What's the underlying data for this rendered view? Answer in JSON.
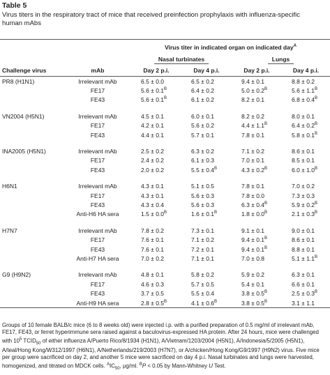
{
  "title": "Table 5",
  "caption": "Virus titers in the respiratory tract of mice that received preinfection prophylaxis with influenza-specific human mAbs",
  "header": {
    "group": {
      "text": "Virus titer in indicated organ on indicated day",
      "sup": "A"
    },
    "organs": [
      "Nasal turbinates",
      "Lungs"
    ],
    "columns": [
      "Challenge virus",
      "mAb",
      "Day 2 p.i.",
      "Day 4 p.i.",
      "Day 2 p.i.",
      "Day 4 p.i."
    ]
  },
  "groups": [
    {
      "virus": "PR8 (H1N1)",
      "rows": [
        {
          "mab": "Irrelevant mAb",
          "cells": [
            "6.5 ± 0.0",
            "6.5 ± 0.2",
            "9.4 ± 0.1",
            "8.8 ± 0.2"
          ]
        },
        {
          "mab": "FE17",
          "cells": [
            {
              "text": "5.6 ± 0.1",
              "sup": "B"
            },
            "6.4 ± 0.2",
            {
              "text": "5.0 ± 0.2",
              "sup": "B"
            },
            {
              "text": "5.6 ± 1.1",
              "sup": "B"
            }
          ]
        },
        {
          "mab": "FE43",
          "cells": [
            {
              "text": "5.6 ± 0.1",
              "sup": "B"
            },
            "6.1 ± 0.2",
            "8.2 ± 0.1",
            {
              "text": "6.8 ± 0.4",
              "sup": "B"
            }
          ]
        }
      ]
    },
    {
      "virus": "VN2004 (H5N1)",
      "rows": [
        {
          "mab": "Irrelevant mAb",
          "cells": [
            "4.5 ± 0.1",
            "6.0 ± 0.1",
            "8.2 ± 0.2",
            "8.0 ± 0.1"
          ]
        },
        {
          "mab": "FE17",
          "cells": [
            "4.2 ± 0.1",
            "5.6 ± 0.2",
            {
              "text": "4.4 ± 1.1",
              "sup": "B"
            },
            {
              "text": "6.4 ± 0.2",
              "sup": "B"
            }
          ]
        },
        {
          "mab": "FE43",
          "cells": [
            "4.4 ± 0.1",
            "5.7 ± 0.1",
            "7.8 ± 0.1",
            {
              "text": "5.8 ± 0.1",
              "sup": "B"
            }
          ]
        }
      ]
    },
    {
      "virus": "INA2005 (H5N1)",
      "rows": [
        {
          "mab": "Irrelevant mAb",
          "cells": [
            "2.5 ± 0.2",
            "6.3 ± 0.2",
            "7.1 ± 0.2",
            "8.6 ± 0.1"
          ]
        },
        {
          "mab": "FE17",
          "cells": [
            "2.4 ± 0.2",
            "6.1 ± 0.3",
            "7.0 ± 0.1",
            "8.5 ± 0.1"
          ]
        },
        {
          "mab": "FE43",
          "cells": [
            "2.0 ± 0.2",
            {
              "text": "5.5 ± 0.4",
              "sup": "B"
            },
            {
              "text": "4.3 ± 0.2",
              "sup": "B"
            },
            {
              "text": "6.0 ± 1.0",
              "sup": "B"
            }
          ]
        }
      ]
    },
    {
      "virus": "H6N1",
      "rows": [
        {
          "mab": "Irrelevant mAb",
          "cells": [
            "4.3 ± 0.1",
            "5.1 ± 0.5",
            "7.8 ± 0.1",
            "7.0 ± 0.2"
          ]
        },
        {
          "mab": "FE17",
          "cells": [
            "4.3 ± 0.1",
            "5.6 ± 0.3",
            "7.8 ± 0.0",
            "7.3 ± 0.3"
          ]
        },
        {
          "mab": "FE43",
          "cells": [
            "4.3 ± 0.4",
            "5.6 ± 0.3",
            {
              "text": "6.3 ± 0.4",
              "sup": "B"
            },
            {
              "text": "5.9 ± 0.2",
              "sup": "B"
            }
          ]
        },
        {
          "mab": "Anti-H6 HA sera",
          "cells": [
            {
              "text": "1.5 ± 0.0",
              "sup": "B"
            },
            {
              "text": "1.6 ± 0.1",
              "sup": "B"
            },
            {
              "text": "1.8 ± 0.0",
              "sup": "B"
            },
            {
              "text": "2.1 ± 0.3",
              "sup": "B"
            }
          ]
        }
      ]
    },
    {
      "virus": "H7N7",
      "rows": [
        {
          "mab": "Irrelevant mAb",
          "cells": [
            "7.8 ± 0.2",
            "7.3 ± 0.1",
            "9.1 ± 0.1",
            "9.0 ± 0.1"
          ]
        },
        {
          "mab": "FE17",
          "cells": [
            "7.6 ± 0.1",
            "7.1 ± 0.2",
            {
              "text": "9.4 ± 0.1",
              "sup": "B"
            },
            "8.6 ± 0.1"
          ]
        },
        {
          "mab": "FE43",
          "cells": [
            "7.6 ± 0.1",
            "7.2 ± 0.1",
            {
              "text": "9.4 ± 0.1",
              "sup": "B"
            },
            "8.8 ± 0.1"
          ]
        },
        {
          "mab": "Anti-H7 HA sera",
          "cells": [
            "7.0 ± 0.2",
            "7.1 ± 0.1",
            "7.0 ± 0.8",
            {
              "text": "5.1 ± 1.1",
              "sup": "B"
            }
          ]
        }
      ]
    },
    {
      "virus": "G9 (H9N2)",
      "rows": [
        {
          "mab": "Irrelevant mAb",
          "cells": [
            "4.8 ± 0.1",
            "5.8 ± 0.2",
            "5.9 ± 0.2",
            "6.3 ± 0.1"
          ]
        },
        {
          "mab": "FE17",
          "cells": [
            "4.6 ± 0.3",
            "5.7 ± 0.5",
            "5.4 ± 0.1",
            "6.6 ± 0.1"
          ]
        },
        {
          "mab": "FE43",
          "cells": [
            "3.7 ± 0.5",
            "5.5 ± 0.4",
            {
              "text": "3.8 ± 0.5",
              "sup": "B"
            },
            {
              "text": "2.5 ± 0.3",
              "sup": "B"
            }
          ]
        },
        {
          "mab": "Anti-H9 HA sera",
          "cells": [
            {
              "text": "2.8 ± 0.5",
              "sup": "B"
            },
            {
              "text": "4.1 ± 0.6",
              "sup": "B"
            },
            {
              "text": "3.8 ± 0.5",
              "sup": "B"
            },
            "3.1 ± 1.1"
          ]
        }
      ]
    }
  ],
  "footnote": [
    {
      "text": "Groups of 10 female BALB/c mice (6 to 8 weeks old) were injected i.p. with a purified preparation of 0.5 mg/ml of irrelevant mAb, FE17, FE43, or ferret hyperimmune sera raised against a baculovirus-expressed HA protein. After 24 hours, mice were challenged with 10"
    },
    {
      "sup": "5"
    },
    {
      "text": " TCID"
    },
    {
      "sub": "50"
    },
    {
      "text": " of either influenza A/Puerto Rico/8/1934 (H1N1), A/Vietnam/1203/2004 (H5N1), A/Indonesia/5/2005 (H5N1), A/teal/Hong Kong/W312/1997 (H6N1), A/Netherlands/219/2003 (H7N7), or A/chicken/Hong Kong/G9/1997 (H9N2) virus. Five mice per group were sacrificed on day 2, and another 5 mice were sacrificed on day 4 p.i. Nasal turbinates and lungs were harvested, homogenized, and titrated on MDCK cells. "
    },
    {
      "sup": "A"
    },
    {
      "text": "IC"
    },
    {
      "sub": "50"
    },
    {
      "text": ", μg/ml. "
    },
    {
      "sup": "B"
    },
    {
      "italic": "P"
    },
    {
      "text": " < 0.05 by Mann-Whitney "
    },
    {
      "italic": "U"
    },
    {
      "text": " Test."
    }
  ]
}
